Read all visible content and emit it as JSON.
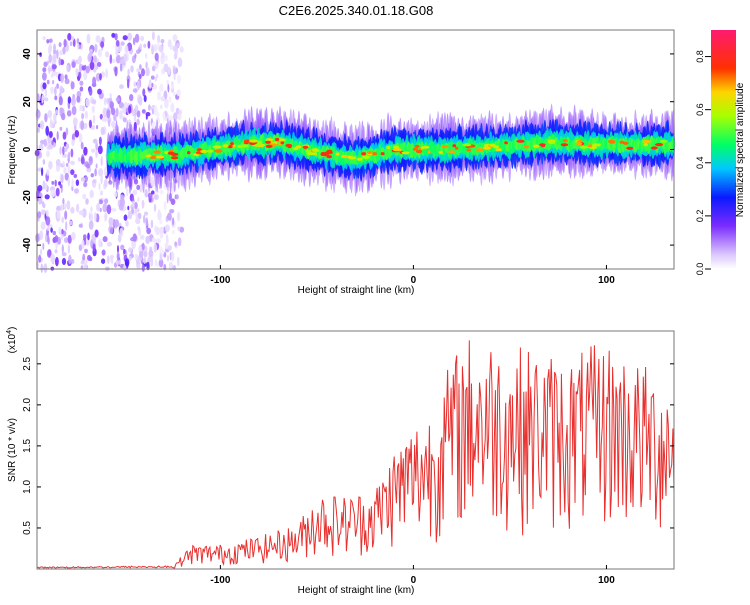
{
  "title": "C2E6.2025.340.01.18.G08",
  "chart_data": [
    {
      "type": "heatmap",
      "xlabel": "Height of straight line (km)",
      "ylabel": "Frequency (Hz)",
      "xlim": [
        -195,
        135
      ],
      "ylim": [
        -50,
        50
      ],
      "xticks": [
        -100,
        0,
        100
      ],
      "yticks": [
        -40,
        -20,
        0,
        20,
        40
      ],
      "ridge": {
        "x_start": -158,
        "x_end": 135,
        "center_freq": [
          [
            -158,
            -3
          ],
          [
            -120,
            -2
          ],
          [
            -90,
            2
          ],
          [
            -70,
            3
          ],
          [
            -50,
            -1
          ],
          [
            -30,
            -4
          ],
          [
            -10,
            0
          ],
          [
            10,
            0
          ],
          [
            40,
            1
          ],
          [
            70,
            3
          ],
          [
            100,
            2
          ],
          [
            135,
            2
          ]
        ],
        "half_width_hz": 6
      },
      "noise_region": {
        "x_start": -195,
        "x_end": -120,
        "freq_range": [
          -50,
          48
        ]
      },
      "colorbar": {
        "label": "Normalized spectral amplitude",
        "range": [
          0.0,
          0.9
        ],
        "ticks": [
          "0.0",
          "0.2",
          "0.4",
          "0.6",
          "0.8"
        ],
        "tick_values": [
          0.0,
          0.2,
          0.4,
          0.6,
          0.8
        ]
      }
    },
    {
      "type": "line",
      "xlabel": "Height of straight line (km)",
      "ylabel": "SNR (10 * v/v)",
      "multiplier_label": "(x10",
      "multiplier_exponent": "4",
      "xlim": [
        -195,
        135
      ],
      "ylim": [
        0,
        2.9
      ],
      "xticks": [
        -100,
        0,
        100
      ],
      "yticks": [
        0.5,
        1.0,
        1.5,
        2.0,
        2.5
      ],
      "ytick_labels": [
        "0.5",
        "1.0",
        "1.5",
        "2.0",
        "2.5"
      ],
      "series": [
        {
          "name": "SNR",
          "color": "#e8302e",
          "envelope": [
            [
              -195,
              0.02
            ],
            [
              -125,
              0.03
            ],
            [
              -115,
              0.3
            ],
            [
              -100,
              0.3
            ],
            [
              -80,
              0.4
            ],
            [
              -60,
              0.55
            ],
            [
              -50,
              0.95
            ],
            [
              -35,
              0.9
            ],
            [
              -20,
              1.0
            ],
            [
              -10,
              1.5
            ],
            [
              0,
              1.8
            ],
            [
              10,
              2.0
            ],
            [
              20,
              2.6
            ],
            [
              30,
              2.9
            ],
            [
              60,
              2.7
            ],
            [
              80,
              2.6
            ],
            [
              100,
              2.8
            ],
            [
              120,
              2.5
            ],
            [
              135,
              2.3
            ]
          ],
          "samples": 560
        }
      ]
    }
  ],
  "colors": {
    "axis": "#000000",
    "frame": "#888888",
    "line": "#e8302e"
  }
}
